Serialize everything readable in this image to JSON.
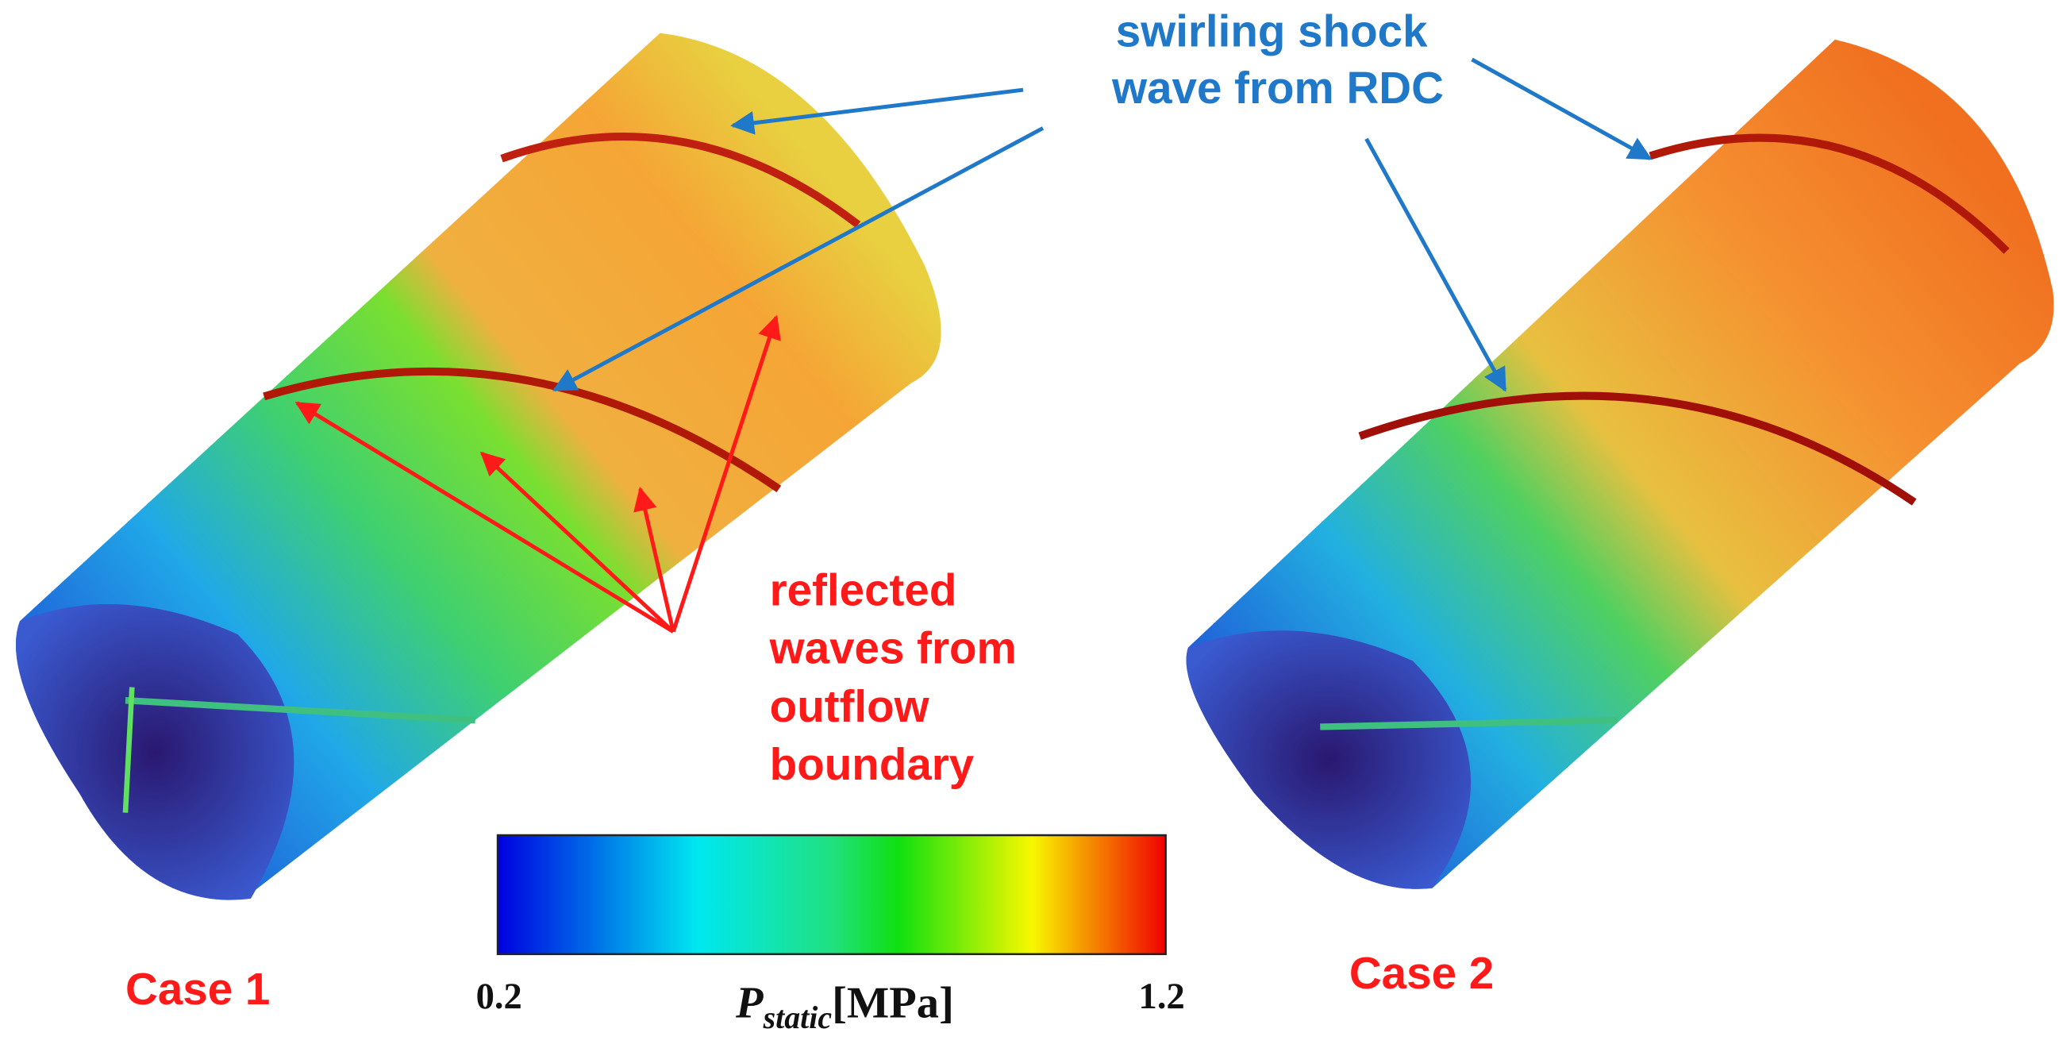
{
  "annotations": {
    "shock": [
      "swirling shock",
      "wave from RDC"
    ],
    "reflected": [
      "reflected",
      "waves from",
      "outflow",
      "boundary"
    ]
  },
  "cases": [
    "Case 1",
    "Case 2"
  ],
  "colorbar": {
    "min_label": "0.2",
    "max_label": "1.2",
    "symbol": "P",
    "subscript": "static",
    "unit": "[MPa]"
  }
}
